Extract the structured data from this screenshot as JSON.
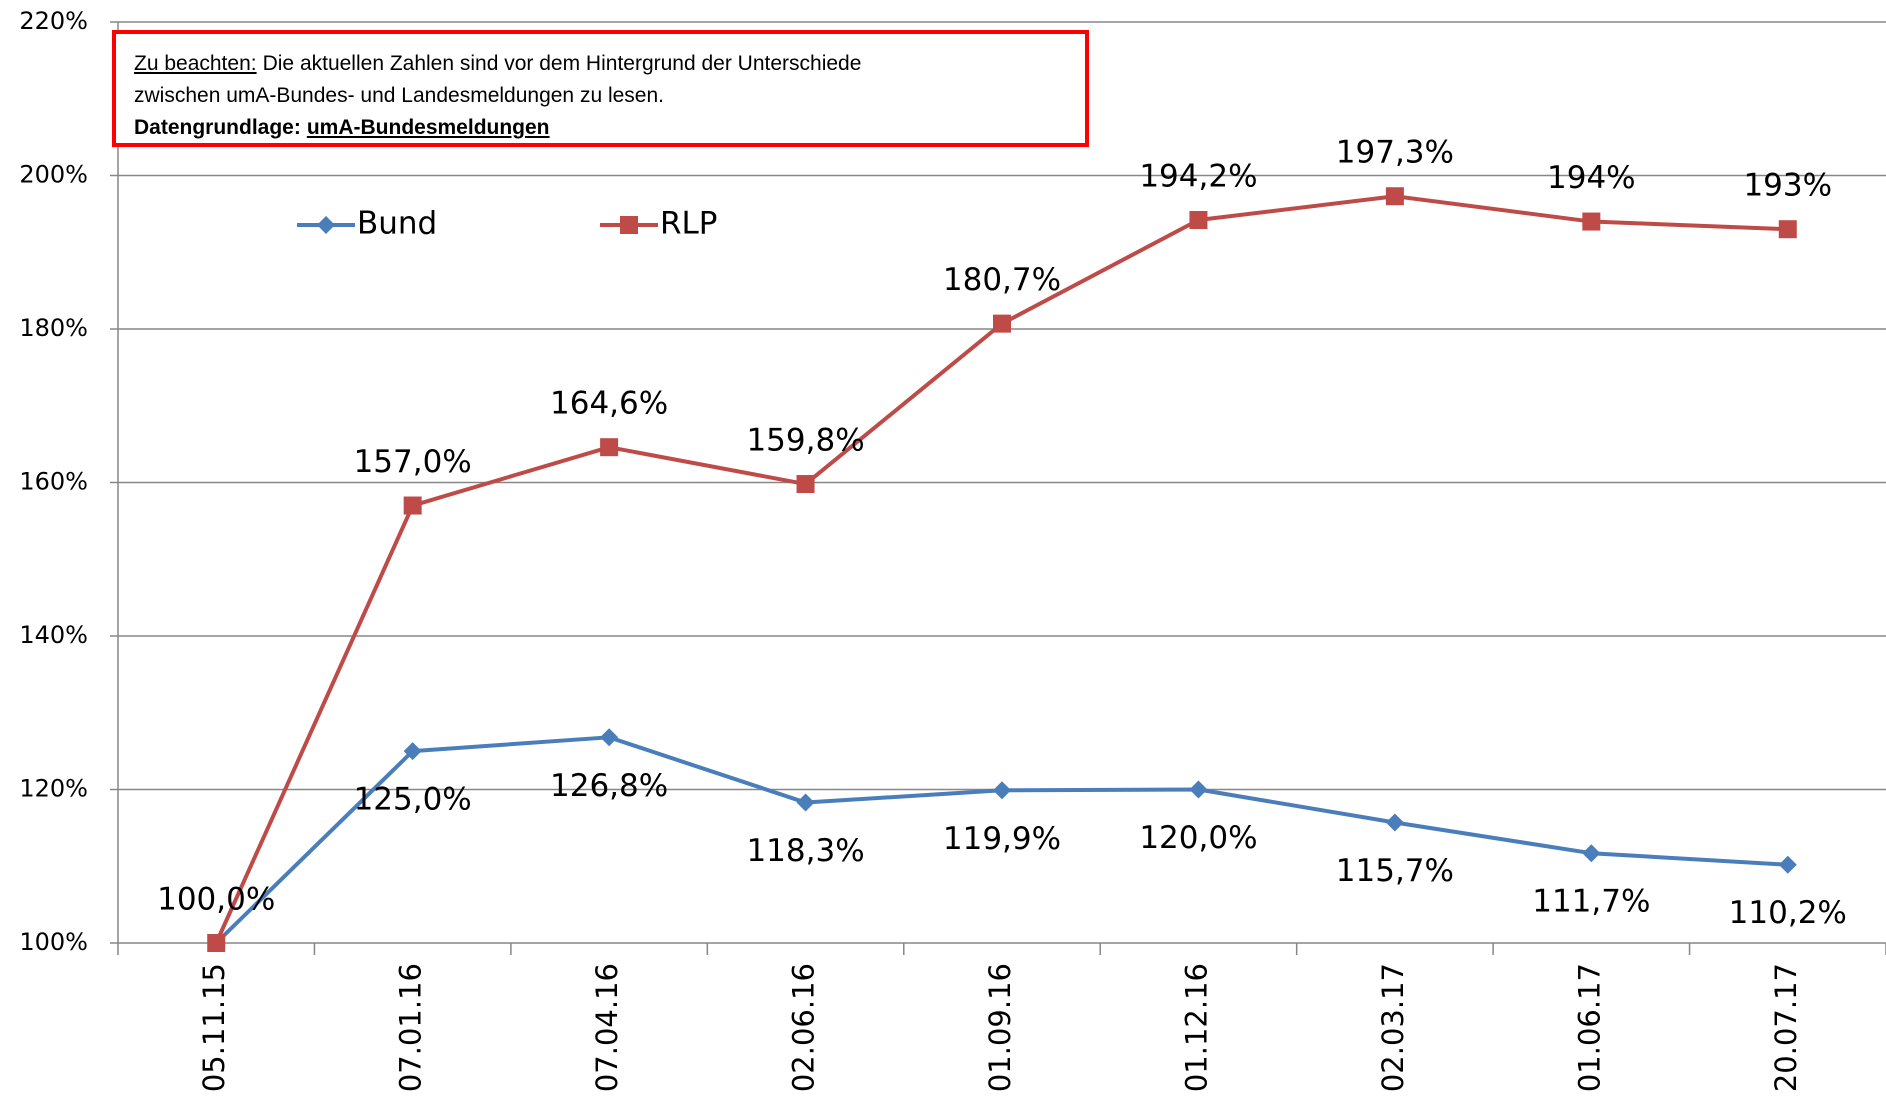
{
  "chart_data": {
    "type": "line",
    "categories": [
      "05.11.15",
      "07.01.16",
      "07.04.16",
      "02.06.16",
      "01.09.16",
      "01.12.16",
      "02.03.17",
      "01.06.17",
      "20.07.17"
    ],
    "series": [
      {
        "name": "Bund",
        "color": "#4a7ebb",
        "marker": "diamond",
        "values": [
          100,
          125,
          126.8,
          118.3,
          119.9,
          120,
          115.7,
          111.7,
          110.2
        ],
        "value_labels": [
          "100,0%",
          "125,0%",
          "126,8%",
          "118,3%",
          "119,9%",
          "120,0%",
          "115,7%",
          "111,7%",
          "110,2%"
        ]
      },
      {
        "name": "RLP",
        "color": "#be4b48",
        "marker": "square",
        "values": [
          100,
          157,
          164.6,
          159.8,
          180.7,
          194.2,
          197.3,
          194,
          193
        ],
        "value_labels": [
          null,
          "157,0%",
          "164,6%",
          "159,8%",
          "180,7%",
          "194,2%",
          "197,3%",
          "194%",
          "193%"
        ]
      }
    ],
    "ylim": [
      100,
      220
    ],
    "yticks": [
      {
        "value": 100,
        "label": "100%"
      },
      {
        "value": 120,
        "label": "120%"
      },
      {
        "value": 140,
        "label": "140%"
      },
      {
        "value": 160,
        "label": "160%"
      },
      {
        "value": 180,
        "label": "180%"
      },
      {
        "value": 200,
        "label": "200%"
      },
      {
        "value": 220,
        "label": "220%"
      }
    ],
    "grid": true,
    "note": {
      "heading": "Zu beachten:",
      "text": [
        "Die aktuellen Zahlen sind vor dem Hintergrund der Unterschiede",
        "zwischen umA-Bundes- und Landesmeldungen zu lesen."
      ],
      "source_label": "Datengrundlage:",
      "source": "umA-Bundesmeldungen"
    }
  }
}
